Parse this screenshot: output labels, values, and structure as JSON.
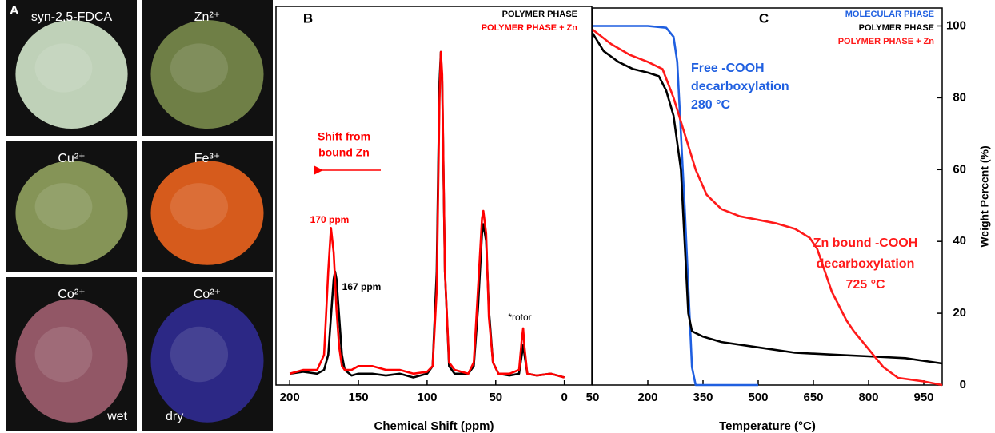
{
  "photo_panel": {
    "label": "A",
    "photos": [
      {
        "label": "syn-2,5-FDCA",
        "color": "#c9dcc2"
      },
      {
        "label": "Zn²⁺",
        "color": "#75864a"
      },
      {
        "label": "Cu²⁺",
        "color": "#8c9c5c"
      },
      {
        "label": "Fe³⁺",
        "color": "#e2601e"
      },
      {
        "label": "Co²⁺",
        "note": "wet",
        "color": "#9a5c6c"
      },
      {
        "label": "Co²⁺",
        "note": "dry",
        "color": "#2e2a8c"
      }
    ]
  },
  "chart_data": [
    {
      "type": "line",
      "label": "B",
      "x_label": "Chemical Shift (ppm)",
      "xlim": [
        210,
        -20
      ],
      "xticks": [
        200,
        150,
        100,
        50,
        0
      ],
      "ylim": [
        0,
        100
      ],
      "series": [
        {
          "name": "POLYMER PHASE",
          "color": "#000000",
          "x": [
            200,
            190,
            180,
            175,
            172,
            170,
            168,
            167,
            166,
            164,
            162,
            160,
            155,
            150,
            140,
            130,
            120,
            110,
            100,
            96,
            93,
            91,
            90,
            89,
            87,
            84,
            80,
            70,
            66,
            63,
            60,
            59,
            57,
            55,
            52,
            48,
            40,
            33,
            31,
            30,
            29,
            27,
            20,
            10,
            0
          ],
          "values": [
            3,
            3.5,
            3,
            4,
            8,
            18,
            28,
            30,
            28,
            18,
            8,
            4,
            2.5,
            3,
            3,
            2.5,
            3,
            2,
            3,
            5,
            30,
            80,
            88,
            80,
            30,
            5,
            3,
            3,
            5,
            20,
            40,
            42.5,
            38,
            20,
            6,
            3,
            2.5,
            3,
            8,
            10.5,
            8,
            3,
            2.5,
            3,
            2
          ]
        },
        {
          "name": "POLYMER PHASE + Zn",
          "color": "#ff0000",
          "x": [
            200,
            190,
            180,
            175,
            172,
            170,
            168,
            167,
            166,
            164,
            162,
            160,
            155,
            150,
            140,
            130,
            120,
            110,
            100,
            96,
            93,
            91,
            90,
            89,
            87,
            84,
            80,
            70,
            66,
            63,
            60,
            59,
            57,
            55,
            52,
            48,
            40,
            33,
            31,
            30,
            29,
            27,
            20,
            10,
            0
          ],
          "values": [
            3,
            4,
            4,
            8,
            30,
            41.5,
            35,
            28,
            20,
            10,
            5,
            4,
            4,
            5,
            5,
            4,
            4,
            3,
            3.5,
            5,
            25,
            75,
            88,
            82,
            30,
            6,
            4,
            3,
            6,
            25,
            44,
            46,
            40,
            18,
            6,
            3,
            3,
            4,
            12,
            15,
            10,
            3,
            2.5,
            3,
            2
          ]
        }
      ],
      "annotations": [
        {
          "lines": [
            "Shift from",
            "bound Zn"
          ],
          "color": "#ff0000"
        },
        {
          "lines": [
            "170 ppm"
          ],
          "color": "#ff0000"
        },
        {
          "lines": [
            "167 ppm"
          ],
          "color": "#000000"
        },
        {
          "lines": [
            "*rotor"
          ],
          "color": "#000000"
        }
      ]
    },
    {
      "type": "line",
      "label": "C",
      "x_label": "Temperature (°C)",
      "y_label": "Weight Percent (%)",
      "xlim": [
        50,
        1000
      ],
      "xticks": [
        50,
        200,
        350,
        500,
        650,
        800,
        950
      ],
      "ylim": [
        0,
        105
      ],
      "yticks": [
        0,
        20,
        40,
        60,
        80,
        100
      ],
      "series": [
        {
          "name": "MOLECULAR PHASE",
          "color": "#1f5fe0",
          "x": [
            50,
            200,
            250,
            270,
            280,
            300,
            320,
            330,
            500
          ],
          "values": [
            100,
            100,
            99.5,
            97,
            90,
            50,
            5,
            0,
            0
          ]
        },
        {
          "name": "POLYMER PHASE",
          "color": "#000000",
          "x": [
            50,
            80,
            120,
            160,
            200,
            230,
            250,
            270,
            290,
            300,
            310,
            320,
            350,
            400,
            500,
            600,
            700,
            800,
            900,
            1000
          ],
          "values": [
            98,
            93,
            90,
            88,
            87,
            86,
            82,
            75,
            60,
            40,
            20,
            15,
            13.5,
            12,
            10.5,
            9,
            8.5,
            8,
            7.5,
            6
          ]
        },
        {
          "name": "POLYMER PHASE + Zn",
          "color": "#ff1a1a",
          "x": [
            50,
            100,
            150,
            200,
            240,
            270,
            300,
            330,
            360,
            400,
            450,
            500,
            550,
            600,
            640,
            660,
            680,
            700,
            720,
            740,
            760,
            800,
            840,
            880,
            950,
            1000
          ],
          "values": [
            99,
            95,
            92,
            90,
            88,
            80,
            70,
            60,
            53,
            49,
            47,
            46,
            45,
            43.5,
            41,
            38,
            32,
            26,
            22,
            18,
            15,
            10,
            5,
            2,
            1,
            0
          ]
        }
      ],
      "annotations": [
        {
          "lines": [
            "Free -COOH",
            "decarboxylation",
            "280 °C"
          ],
          "color": "#1f5fe0"
        },
        {
          "lines": [
            "Zn bound -COOH",
            "decarboxylation",
            "725 °C"
          ],
          "color": "#ff1a1a"
        }
      ]
    }
  ]
}
